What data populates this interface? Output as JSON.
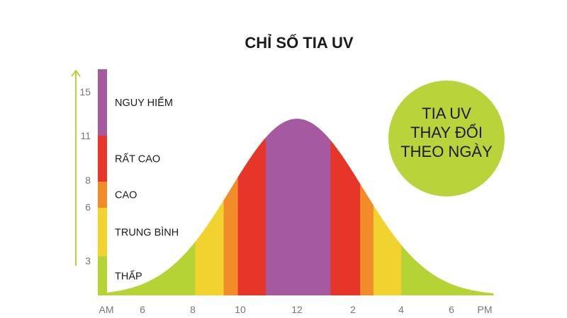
{
  "chart_data": {
    "type": "area",
    "title": "CHỈ SỐ TIA UV",
    "annotation": [
      "TIA UV",
      "THAY ĐỔI",
      "THEO NGÀY"
    ],
    "x_ticks": [
      "AM",
      "6",
      "8",
      "10",
      "12",
      "2",
      "4",
      "6",
      "PM"
    ],
    "y_ticks": [
      "15",
      "11",
      "8",
      "6",
      "3"
    ],
    "levels": [
      {
        "label": "THẤP",
        "min": 0,
        "max": 3,
        "color": "#b5d334"
      },
      {
        "label": "TRUNG BÌNH",
        "min": 3,
        "max": 6,
        "color": "#f2d22e"
      },
      {
        "label": "CAO",
        "min": 6,
        "max": 8,
        "color": "#f28c28"
      },
      {
        "label": "RẤT CAO",
        "min": 8,
        "max": 11,
        "color": "#e8352a"
      },
      {
        "label": "NGUY HIỂM",
        "min": 11,
        "max": 15,
        "color": "#a5599f"
      }
    ],
    "time_bands": [
      {
        "from": 4.5,
        "to": 8.1,
        "level": "THẤP"
      },
      {
        "from": 8.1,
        "to": 9.3,
        "level": "TRUNG BÌNH"
      },
      {
        "from": 9.3,
        "to": 9.9,
        "level": "CAO"
      },
      {
        "from": 9.9,
        "to": 10.9,
        "level": "RẤT CAO"
      },
      {
        "from": 10.9,
        "to": 13.2,
        "level": "NGUY HIỂM"
      },
      {
        "from": 13.2,
        "to": 14.3,
        "level": "RẤT CAO"
      },
      {
        "from": 14.3,
        "to": 14.85,
        "level": "CAO"
      },
      {
        "from": 14.85,
        "to": 16.0,
        "level": "TRUNG BÌNH"
      },
      {
        "from": 16.0,
        "to": 19.7,
        "level": "THẤP"
      }
    ],
    "peak_hour": 12,
    "circle_color": "#b8d43a",
    "arrow_color": "#b5d334"
  }
}
